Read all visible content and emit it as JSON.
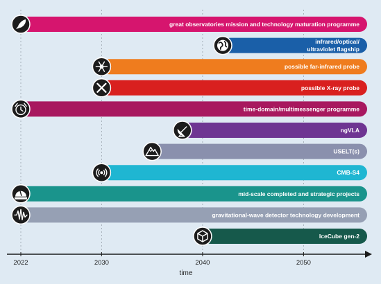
{
  "chart_data": {
    "type": "bar",
    "orientation": "horizontal-timeline",
    "xlabel": "time",
    "x_ticks": [
      2022,
      2030,
      2040,
      2050
    ],
    "xlim": [
      2020,
      2055
    ],
    "grid": true,
    "bar_end": 2050,
    "series": [
      {
        "label": "great observatories mission and technology maturation programme",
        "start": 2022,
        "end": 2050,
        "color": "#d6156e",
        "icon": "rocket-icon"
      },
      {
        "label": "infrared/optical/ ultraviolet flagship",
        "label_lines": [
          "infrared/optical/",
          "ultraviolet flagship"
        ],
        "start": 2042,
        "end": 2050,
        "color": "#1a5fa8",
        "icon": "globe-icon"
      },
      {
        "label": "possible far-infrared probe",
        "start": 2030,
        "end": 2050,
        "color": "#ef7c1e",
        "icon": "snowflake-icon"
      },
      {
        "label": "possible X-ray probe",
        "start": 2030,
        "end": 2050,
        "color": "#d9201f",
        "icon": "x-mark-icon"
      },
      {
        "label": "time-domain/multimessenger programme",
        "start": 2022,
        "end": 2050,
        "color": "#a8185f",
        "icon": "alarm-clock-icon"
      },
      {
        "label": "ngVLA",
        "start": 2038,
        "end": 2050,
        "color": "#6e3592",
        "icon": "radio-dish-icon"
      },
      {
        "label": "USELT(s)",
        "start": 2035,
        "end": 2050,
        "color": "#8a90ad",
        "icon": "mountain-icon"
      },
      {
        "label": "CMB-S4",
        "start": 2030,
        "end": 2050,
        "color": "#1fb6d2",
        "icon": "signal-icon"
      },
      {
        "label": "mid-scale completed and strategic projects",
        "start": 2022,
        "end": 2050,
        "color": "#1a948c",
        "icon": "observatory-dome-icon"
      },
      {
        "label": "gravitational-wave detector technology development",
        "start": 2022,
        "end": 2050,
        "color": "#96a0b4",
        "icon": "waveform-icon"
      },
      {
        "label": "IceCube gen-2",
        "start": 2040,
        "end": 2050,
        "color": "#16594b",
        "icon": "cube-icon"
      }
    ]
  }
}
